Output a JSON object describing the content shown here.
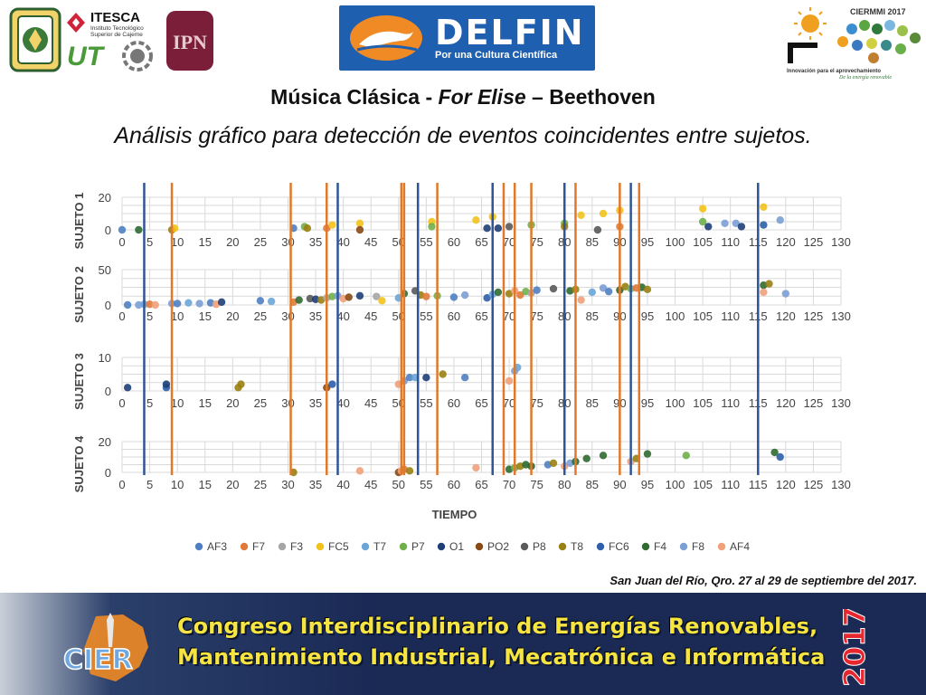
{
  "header": {
    "logos_left": [
      "university-seal",
      "ITESCA",
      "UT",
      "IPN"
    ],
    "itesca": {
      "name": "ITESCA",
      "line1": "Instituto Tecnológico",
      "line2": "Superior de Cajeme"
    },
    "ut": "UT",
    "ipn": "IPN",
    "delfin": {
      "name": "DELFIN",
      "tagline": "Por una Cultura Científica"
    },
    "ciermmi": {
      "name": "CIERMMI 2017",
      "line1": "Innovación para el aprovechamiento",
      "line2": "De la energía renovable"
    }
  },
  "slide": {
    "title_prefix": "Música Clásica - ",
    "title_italic": "For Elise",
    "title_suffix": " – Beethoven",
    "subtitle": "Análisis gráfico para detección de eventos coincidentes entre sujetos."
  },
  "chart_data": {
    "type": "scatter",
    "xlabel": "TIEMPO",
    "xlim": [
      0,
      130
    ],
    "x_ticks": [
      0,
      5,
      10,
      15,
      20,
      25,
      30,
      35,
      40,
      45,
      50,
      55,
      60,
      65,
      70,
      75,
      80,
      85,
      90,
      95,
      100,
      105,
      110,
      115,
      120,
      125,
      130
    ],
    "legend_position": "bottom",
    "grid": true,
    "series_colors": {
      "AF3": "#4f7fc2",
      "F7": "#e07a3a",
      "F3": "#a5a5a5",
      "FC5": "#f2c21a",
      "T7": "#6aa6d8",
      "P7": "#6fb04a",
      "O1": "#1f3f78",
      "PO2": "#8a4a14",
      "P8": "#5a5a5a",
      "T8": "#9a7f12",
      "FC6": "#2e5fa8",
      "F4": "#2f6a30",
      "F8": "#7b9fd6",
      "AF4": "#f0a07a"
    },
    "legend": [
      "AF3",
      "F7",
      "F3",
      "FC5",
      "T7",
      "P7",
      "O1",
      "PO2",
      "P8",
      "T8",
      "FC6",
      "F4",
      "F8",
      "AF4"
    ],
    "vlines": [
      {
        "x": 4,
        "color": "blue"
      },
      {
        "x": 9,
        "color": "orange"
      },
      {
        "x": 30.5,
        "color": "orange"
      },
      {
        "x": 37,
        "color": "orange"
      },
      {
        "x": 39,
        "color": "blue"
      },
      {
        "x": 50.5,
        "color": "orange"
      },
      {
        "x": 51,
        "color": "orange"
      },
      {
        "x": 53.5,
        "color": "blue"
      },
      {
        "x": 57,
        "color": "orange"
      },
      {
        "x": 67,
        "color": "blue"
      },
      {
        "x": 69,
        "color": "orange"
      },
      {
        "x": 71,
        "color": "orange"
      },
      {
        "x": 74,
        "color": "orange"
      },
      {
        "x": 80,
        "color": "blue"
      },
      {
        "x": 82,
        "color": "orange"
      },
      {
        "x": 90,
        "color": "orange"
      },
      {
        "x": 92,
        "color": "blue"
      },
      {
        "x": 93.5,
        "color": "orange"
      },
      {
        "x": 115,
        "color": "blue"
      }
    ],
    "subplots": [
      {
        "label": "SUJETO 1",
        "ylim": [
          0,
          20
        ],
        "y_ticks": [
          0,
          20
        ],
        "points": [
          {
            "s": "AF3",
            "x": 0,
            "y": 0
          },
          {
            "s": "F4",
            "x": 3,
            "y": 0
          },
          {
            "s": "T8",
            "x": 9,
            "y": 0
          },
          {
            "s": "FC5",
            "x": 9.5,
            "y": 1
          },
          {
            "s": "AF3",
            "x": 31,
            "y": 1
          },
          {
            "s": "P7",
            "x": 33,
            "y": 2
          },
          {
            "s": "T8",
            "x": 33.5,
            "y": 1
          },
          {
            "s": "F7",
            "x": 37,
            "y": 1
          },
          {
            "s": "FC5",
            "x": 38,
            "y": 3
          },
          {
            "s": "FC5",
            "x": 43,
            "y": 4
          },
          {
            "s": "PO2",
            "x": 43,
            "y": 0
          },
          {
            "s": "FC5",
            "x": 56,
            "y": 5
          },
          {
            "s": "P7",
            "x": 56,
            "y": 2
          },
          {
            "s": "FC5",
            "x": 64,
            "y": 6
          },
          {
            "s": "O1",
            "x": 66,
            "y": 1
          },
          {
            "s": "FC5",
            "x": 67,
            "y": 8
          },
          {
            "s": "O1",
            "x": 68,
            "y": 1
          },
          {
            "s": "P8",
            "x": 70,
            "y": 2
          },
          {
            "s": "P7",
            "x": 74,
            "y": 3
          },
          {
            "s": "P7",
            "x": 80,
            "y": 4
          },
          {
            "s": "T8",
            "x": 80,
            "y": 2
          },
          {
            "s": "FC5",
            "x": 83,
            "y": 9
          },
          {
            "s": "P8",
            "x": 86,
            "y": 0
          },
          {
            "s": "FC5",
            "x": 87,
            "y": 10
          },
          {
            "s": "FC5",
            "x": 90,
            "y": 12
          },
          {
            "s": "F7",
            "x": 90,
            "y": 2
          },
          {
            "s": "FC5",
            "x": 105,
            "y": 13
          },
          {
            "s": "P7",
            "x": 105,
            "y": 5
          },
          {
            "s": "O1",
            "x": 106,
            "y": 2
          },
          {
            "s": "F8",
            "x": 109,
            "y": 4
          },
          {
            "s": "F8",
            "x": 111,
            "y": 4
          },
          {
            "s": "O1",
            "x": 112,
            "y": 2
          },
          {
            "s": "FC5",
            "x": 116,
            "y": 14
          },
          {
            "s": "FC6",
            "x": 116,
            "y": 3
          },
          {
            "s": "F8",
            "x": 119,
            "y": 6
          }
        ]
      },
      {
        "label": "SUJETO 2",
        "ylim": [
          0,
          50
        ],
        "y_ticks": [
          0,
          50
        ],
        "points": [
          {
            "s": "AF3",
            "x": 1,
            "y": 0
          },
          {
            "s": "F8",
            "x": 3,
            "y": 0
          },
          {
            "s": "T7",
            "x": 4,
            "y": 1
          },
          {
            "s": "F7",
            "x": 5,
            "y": 1
          },
          {
            "s": "AF4",
            "x": 6,
            "y": 0
          },
          {
            "s": "F8",
            "x": 9,
            "y": 2
          },
          {
            "s": "AF3",
            "x": 10,
            "y": 2
          },
          {
            "s": "T7",
            "x": 12,
            "y": 3
          },
          {
            "s": "F8",
            "x": 14,
            "y": 2
          },
          {
            "s": "AF3",
            "x": 16,
            "y": 3
          },
          {
            "s": "AF4",
            "x": 17,
            "y": 1
          },
          {
            "s": "O1",
            "x": 18,
            "y": 4
          },
          {
            "s": "AF3",
            "x": 25,
            "y": 6
          },
          {
            "s": "T7",
            "x": 27,
            "y": 5
          },
          {
            "s": "F7",
            "x": 31,
            "y": 4
          },
          {
            "s": "F4",
            "x": 32,
            "y": 7
          },
          {
            "s": "P8",
            "x": 34,
            "y": 9
          },
          {
            "s": "O1",
            "x": 35,
            "y": 8
          },
          {
            "s": "T8",
            "x": 36,
            "y": 7
          },
          {
            "s": "F3",
            "x": 37,
            "y": 10
          },
          {
            "s": "P7",
            "x": 38,
            "y": 12
          },
          {
            "s": "F8",
            "x": 39,
            "y": 13
          },
          {
            "s": "AF4",
            "x": 40,
            "y": 9
          },
          {
            "s": "PO2",
            "x": 41,
            "y": 11
          },
          {
            "s": "O1",
            "x": 43,
            "y": 13
          },
          {
            "s": "F3",
            "x": 46,
            "y": 12
          },
          {
            "s": "FC5",
            "x": 47,
            "y": 6
          },
          {
            "s": "T7",
            "x": 50,
            "y": 10
          },
          {
            "s": "F4",
            "x": 51,
            "y": 16
          },
          {
            "s": "P8",
            "x": 53,
            "y": 20
          },
          {
            "s": "T8",
            "x": 54,
            "y": 14
          },
          {
            "s": "F7",
            "x": 55,
            "y": 12
          },
          {
            "s": "P7",
            "x": 57,
            "y": 13
          },
          {
            "s": "AF3",
            "x": 60,
            "y": 11
          },
          {
            "s": "F8",
            "x": 62,
            "y": 14
          },
          {
            "s": "FC6",
            "x": 66,
            "y": 10
          },
          {
            "s": "T7",
            "x": 67,
            "y": 15
          },
          {
            "s": "F4",
            "x": 68,
            "y": 18
          },
          {
            "s": "T8",
            "x": 70,
            "y": 16
          },
          {
            "s": "AF4",
            "x": 71,
            "y": 20
          },
          {
            "s": "F7",
            "x": 72,
            "y": 14
          },
          {
            "s": "P7",
            "x": 73,
            "y": 19
          },
          {
            "s": "F3",
            "x": 74,
            "y": 17
          },
          {
            "s": "AF3",
            "x": 75,
            "y": 21
          },
          {
            "s": "P8",
            "x": 78,
            "y": 23
          },
          {
            "s": "F4",
            "x": 81,
            "y": 20
          },
          {
            "s": "T8",
            "x": 82,
            "y": 22
          },
          {
            "s": "AF4",
            "x": 83,
            "y": 7
          },
          {
            "s": "T7",
            "x": 85,
            "y": 18
          },
          {
            "s": "F8",
            "x": 87,
            "y": 24
          },
          {
            "s": "AF3",
            "x": 88,
            "y": 19
          },
          {
            "s": "F4",
            "x": 90,
            "y": 21
          },
          {
            "s": "T8",
            "x": 91,
            "y": 26
          },
          {
            "s": "P7",
            "x": 92,
            "y": 23
          },
          {
            "s": "F7",
            "x": 93,
            "y": 24
          },
          {
            "s": "F4",
            "x": 94,
            "y": 25
          },
          {
            "s": "T8",
            "x": 95,
            "y": 22
          },
          {
            "s": "F4",
            "x": 116,
            "y": 28
          },
          {
            "s": "T8",
            "x": 117,
            "y": 30
          },
          {
            "s": "AF4",
            "x": 116,
            "y": 18
          },
          {
            "s": "F8",
            "x": 120,
            "y": 16
          }
        ]
      },
      {
        "label": "SUJETO 3",
        "ylim": [
          0,
          10
        ],
        "y_ticks": [
          0,
          10
        ],
        "points": [
          {
            "s": "O1",
            "x": 1,
            "y": 1
          },
          {
            "s": "FC6",
            "x": 8,
            "y": 1
          },
          {
            "s": "O1",
            "x": 8,
            "y": 2
          },
          {
            "s": "T8",
            "x": 21,
            "y": 1
          },
          {
            "s": "T8",
            "x": 21.5,
            "y": 2
          },
          {
            "s": "PO2",
            "x": 37,
            "y": 1
          },
          {
            "s": "FC6",
            "x": 38,
            "y": 2
          },
          {
            "s": "AF4",
            "x": 50,
            "y": 2
          },
          {
            "s": "F8",
            "x": 51,
            "y": 3
          },
          {
            "s": "AF3",
            "x": 52,
            "y": 4
          },
          {
            "s": "T7",
            "x": 53,
            "y": 4
          },
          {
            "s": "O1",
            "x": 55,
            "y": 4
          },
          {
            "s": "T8",
            "x": 58,
            "y": 5
          },
          {
            "s": "AF3",
            "x": 62,
            "y": 4
          },
          {
            "s": "AF4",
            "x": 70,
            "y": 3
          },
          {
            "s": "F8",
            "x": 71,
            "y": 6
          },
          {
            "s": "T7",
            "x": 71.5,
            "y": 7
          }
        ]
      },
      {
        "label": "SUJETO 4",
        "ylim": [
          0,
          20
        ],
        "y_ticks": [
          0,
          20
        ],
        "points": [
          {
            "s": "T8",
            "x": 31,
            "y": 0
          },
          {
            "s": "AF4",
            "x": 43,
            "y": 1
          },
          {
            "s": "PO2",
            "x": 50,
            "y": 0
          },
          {
            "s": "AF4",
            "x": 50.5,
            "y": 1
          },
          {
            "s": "F7",
            "x": 51,
            "y": 2
          },
          {
            "s": "T8",
            "x": 52,
            "y": 1
          },
          {
            "s": "AF4",
            "x": 64,
            "y": 3
          },
          {
            "s": "F4",
            "x": 70,
            "y": 2
          },
          {
            "s": "P7",
            "x": 71,
            "y": 3
          },
          {
            "s": "T8",
            "x": 72,
            "y": 4
          },
          {
            "s": "F4",
            "x": 73,
            "y": 5
          },
          {
            "s": "F4",
            "x": 74,
            "y": 4
          },
          {
            "s": "AF3",
            "x": 77,
            "y": 5
          },
          {
            "s": "T8",
            "x": 78,
            "y": 6
          },
          {
            "s": "AF4",
            "x": 80,
            "y": 4
          },
          {
            "s": "F8",
            "x": 81,
            "y": 6
          },
          {
            "s": "F4",
            "x": 82,
            "y": 7
          },
          {
            "s": "F4",
            "x": 84,
            "y": 9
          },
          {
            "s": "F4",
            "x": 87,
            "y": 11
          },
          {
            "s": "AF4",
            "x": 92,
            "y": 7
          },
          {
            "s": "T8",
            "x": 93,
            "y": 9
          },
          {
            "s": "F4",
            "x": 95,
            "y": 12
          },
          {
            "s": "P7",
            "x": 102,
            "y": 11
          },
          {
            "s": "F4",
            "x": 118,
            "y": 13
          },
          {
            "s": "FC6",
            "x": 119,
            "y": 10
          }
        ]
      }
    ]
  },
  "footer": {
    "note": "San Juan del Río, Qro. 27 al 29 de septiembre del 2017.",
    "banner_line1": "Congreso Interdisciplinario de Energías Renovables,",
    "banner_line2": "Mantenimiento Industrial, Mecatrónica e Informática",
    "banner_year": "2017",
    "banner_logo": "CIER"
  }
}
